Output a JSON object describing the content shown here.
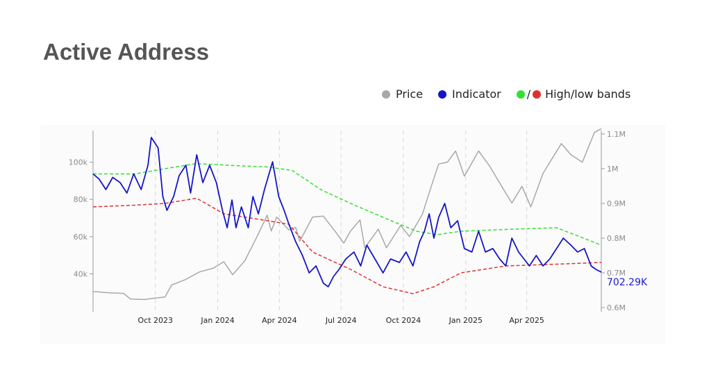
{
  "page": {
    "title": "Active Address"
  },
  "legend": {
    "price_label": "Price",
    "indicator_label": "Indicator",
    "bands_label": "High/low bands",
    "bands_separator": "/"
  },
  "colors": {
    "price": "#a8a8a8",
    "indicator": "#1515c8",
    "high_band": "#33e033",
    "low_band": "#e03030",
    "title": "#555555",
    "grid": "#d6d6d6",
    "last_value": "#1a1ad6"
  },
  "chart_data": {
    "type": "line",
    "x_axis": {
      "type": "date",
      "range": [
        "2023-07-01",
        "2025-07-20"
      ],
      "ticks": [
        {
          "date": "2023-10-01",
          "label": "Oct 2023"
        },
        {
          "date": "2024-01-01",
          "label": "Jan 2024"
        },
        {
          "date": "2024-04-01",
          "label": "Apr 2024"
        },
        {
          "date": "2024-07-01",
          "label": "Jul 2024"
        },
        {
          "date": "2024-10-01",
          "label": "Oct 2024"
        },
        {
          "date": "2025-01-01",
          "label": "Jan 2025"
        },
        {
          "date": "2025-04-01",
          "label": "Apr 2025"
        }
      ],
      "grid": true
    },
    "y_axis_left": {
      "range": [
        20000,
        117000
      ],
      "ticks": [
        {
          "value": 40000,
          "label": "40k"
        },
        {
          "value": 60000,
          "label": "60k"
        },
        {
          "value": 80000,
          "label": "80k"
        },
        {
          "value": 100000,
          "label": "100k"
        }
      ]
    },
    "y_axis_right": {
      "range": [
        590000,
        1110000
      ],
      "ticks": [
        {
          "value": 600000,
          "label": "0.6M"
        },
        {
          "value": 700000,
          "label": "0.7M"
        },
        {
          "value": 800000,
          "label": "0.8M"
        },
        {
          "value": 900000,
          "label": "0.9M"
        },
        {
          "value": 1000000,
          "label": "1M"
        },
        {
          "value": 1100000,
          "label": "1.1M"
        }
      ]
    },
    "last_value_label": "702.29K",
    "series": [
      {
        "name": "Price",
        "axis": "left",
        "style": "solid",
        "points": [
          [
            "2023-07-01",
            30500
          ],
          [
            "2023-07-25",
            29800
          ],
          [
            "2023-08-15",
            29500
          ],
          [
            "2023-08-25",
            26500
          ],
          [
            "2023-09-15",
            26200
          ],
          [
            "2023-10-01",
            27000
          ],
          [
            "2023-10-15",
            27500
          ],
          [
            "2023-10-25",
            34000
          ],
          [
            "2023-11-15",
            37000
          ],
          [
            "2023-12-05",
            41000
          ],
          [
            "2023-12-25",
            43000
          ],
          [
            "2024-01-10",
            46500
          ],
          [
            "2024-01-23",
            39500
          ],
          [
            "2024-02-10",
            47000
          ],
          [
            "2024-02-28",
            60000
          ],
          [
            "2024-03-14",
            71500
          ],
          [
            "2024-03-20",
            63000
          ],
          [
            "2024-03-28",
            70500
          ],
          [
            "2024-04-15",
            63500
          ],
          [
            "2024-04-25",
            65000
          ],
          [
            "2024-05-01",
            57500
          ],
          [
            "2024-05-20",
            70500
          ],
          [
            "2024-06-05",
            71000
          ],
          [
            "2024-06-25",
            61500
          ],
          [
            "2024-07-05",
            56500
          ],
          [
            "2024-07-15",
            63000
          ],
          [
            "2024-07-29",
            69000
          ],
          [
            "2024-08-05",
            54000
          ],
          [
            "2024-08-25",
            64000
          ],
          [
            "2024-09-06",
            54000
          ],
          [
            "2024-09-27",
            66000
          ],
          [
            "2024-10-10",
            60000
          ],
          [
            "2024-10-29",
            72000
          ],
          [
            "2024-11-12",
            88000
          ],
          [
            "2024-11-22",
            99000
          ],
          [
            "2024-12-05",
            100000
          ],
          [
            "2024-12-17",
            106000
          ],
          [
            "2024-12-30",
            92500
          ],
          [
            "2025-01-20",
            106000
          ],
          [
            "2025-02-05",
            98000
          ],
          [
            "2025-02-28",
            84000
          ],
          [
            "2025-03-10",
            78000
          ],
          [
            "2025-03-25",
            87000
          ],
          [
            "2025-04-07",
            76000
          ],
          [
            "2025-04-25",
            94000
          ],
          [
            "2025-05-22",
            110000
          ],
          [
            "2025-06-05",
            104000
          ],
          [
            "2025-06-22",
            100000
          ],
          [
            "2025-07-10",
            116000
          ],
          [
            "2025-07-20",
            118000
          ]
        ]
      },
      {
        "name": "Indicator",
        "axis": "right",
        "style": "solid",
        "points": [
          [
            "2023-07-01",
            985000
          ],
          [
            "2023-07-10",
            970000
          ],
          [
            "2023-07-20",
            940000
          ],
          [
            "2023-07-30",
            975000
          ],
          [
            "2023-08-10",
            960000
          ],
          [
            "2023-08-20",
            930000
          ],
          [
            "2023-08-30",
            985000
          ],
          [
            "2023-09-10",
            940000
          ],
          [
            "2023-09-20",
            1010000
          ],
          [
            "2023-09-25",
            1090000
          ],
          [
            "2023-10-05",
            1060000
          ],
          [
            "2023-10-12",
            920000
          ],
          [
            "2023-10-18",
            880000
          ],
          [
            "2023-10-28",
            920000
          ],
          [
            "2023-11-05",
            980000
          ],
          [
            "2023-11-15",
            1010000
          ],
          [
            "2023-11-22",
            930000
          ],
          [
            "2023-12-01",
            1040000
          ],
          [
            "2023-12-10",
            960000
          ],
          [
            "2023-12-20",
            1010000
          ],
          [
            "2023-12-30",
            960000
          ],
          [
            "2024-01-08",
            880000
          ],
          [
            "2024-01-15",
            830000
          ],
          [
            "2024-01-22",
            910000
          ],
          [
            "2024-01-28",
            830000
          ],
          [
            "2024-02-05",
            890000
          ],
          [
            "2024-02-15",
            830000
          ],
          [
            "2024-02-22",
            920000
          ],
          [
            "2024-03-01",
            870000
          ],
          [
            "2024-03-10",
            940000
          ],
          [
            "2024-03-22",
            1020000
          ],
          [
            "2024-03-31",
            920000
          ],
          [
            "2024-04-08",
            880000
          ],
          [
            "2024-04-15",
            840000
          ],
          [
            "2024-04-25",
            790000
          ],
          [
            "2024-05-05",
            750000
          ],
          [
            "2024-05-15",
            700000
          ],
          [
            "2024-05-25",
            720000
          ],
          [
            "2024-06-05",
            670000
          ],
          [
            "2024-06-12",
            660000
          ],
          [
            "2024-06-20",
            690000
          ],
          [
            "2024-06-28",
            710000
          ],
          [
            "2024-07-08",
            740000
          ],
          [
            "2024-07-20",
            760000
          ],
          [
            "2024-07-30",
            720000
          ],
          [
            "2024-08-08",
            780000
          ],
          [
            "2024-08-20",
            740000
          ],
          [
            "2024-09-01",
            700000
          ],
          [
            "2024-09-12",
            740000
          ],
          [
            "2024-09-25",
            730000
          ],
          [
            "2024-10-05",
            760000
          ],
          [
            "2024-10-15",
            720000
          ],
          [
            "2024-10-25",
            790000
          ],
          [
            "2024-11-01",
            820000
          ],
          [
            "2024-11-08",
            870000
          ],
          [
            "2024-11-15",
            800000
          ],
          [
            "2024-11-22",
            860000
          ],
          [
            "2024-12-01",
            900000
          ],
          [
            "2024-12-10",
            830000
          ],
          [
            "2024-12-20",
            850000
          ],
          [
            "2024-12-30",
            770000
          ],
          [
            "2025-01-10",
            760000
          ],
          [
            "2025-01-20",
            820000
          ],
          [
            "2025-01-30",
            760000
          ],
          [
            "2025-02-10",
            770000
          ],
          [
            "2025-02-20",
            740000
          ],
          [
            "2025-03-01",
            720000
          ],
          [
            "2025-03-10",
            800000
          ],
          [
            "2025-03-20",
            760000
          ],
          [
            "2025-03-28",
            740000
          ],
          [
            "2025-04-05",
            720000
          ],
          [
            "2025-04-15",
            750000
          ],
          [
            "2025-04-25",
            720000
          ],
          [
            "2025-05-05",
            740000
          ],
          [
            "2025-05-15",
            770000
          ],
          [
            "2025-05-25",
            800000
          ],
          [
            "2025-06-05",
            780000
          ],
          [
            "2025-06-15",
            760000
          ],
          [
            "2025-06-25",
            770000
          ],
          [
            "2025-07-05",
            720000
          ],
          [
            "2025-07-12",
            710000
          ],
          [
            "2025-07-20",
            702290
          ]
        ]
      },
      {
        "name": "High band",
        "axis": "right",
        "style": "dashed",
        "points": [
          [
            "2023-07-01",
            985000
          ],
          [
            "2023-09-01",
            985000
          ],
          [
            "2023-10-15",
            1000000
          ],
          [
            "2023-12-01",
            1015000
          ],
          [
            "2024-01-15",
            1010000
          ],
          [
            "2024-03-15",
            1005000
          ],
          [
            "2024-04-20",
            995000
          ],
          [
            "2024-06-01",
            940000
          ],
          [
            "2024-07-15",
            900000
          ],
          [
            "2024-09-01",
            860000
          ],
          [
            "2024-10-20",
            820000
          ],
          [
            "2024-11-20",
            810000
          ],
          [
            "2024-12-25",
            820000
          ],
          [
            "2025-03-01",
            825000
          ],
          [
            "2025-05-15",
            830000
          ],
          [
            "2025-07-20",
            780000
          ]
        ]
      },
      {
        "name": "Low band",
        "axis": "right",
        "style": "dashed",
        "points": [
          [
            "2023-07-01",
            890000
          ],
          [
            "2023-09-01",
            895000
          ],
          [
            "2023-10-15",
            900000
          ],
          [
            "2023-12-01",
            915000
          ],
          [
            "2024-01-10",
            870000
          ],
          [
            "2024-03-15",
            850000
          ],
          [
            "2024-04-15",
            840000
          ],
          [
            "2024-05-20",
            760000
          ],
          [
            "2024-07-15",
            710000
          ],
          [
            "2024-09-01",
            660000
          ],
          [
            "2024-10-15",
            640000
          ],
          [
            "2024-11-15",
            660000
          ],
          [
            "2024-12-25",
            700000
          ],
          [
            "2025-03-01",
            720000
          ],
          [
            "2025-05-15",
            725000
          ],
          [
            "2025-07-20",
            730000
          ]
        ]
      }
    ]
  }
}
